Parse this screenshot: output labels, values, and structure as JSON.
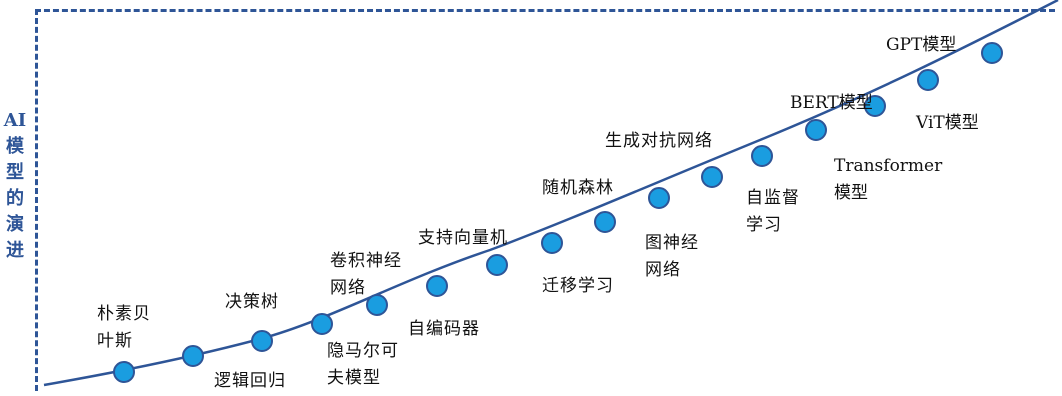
{
  "side_label": [
    "AI",
    "模",
    "型",
    "的",
    "演",
    "进"
  ],
  "colors": {
    "frame": "#2e5597",
    "curve": "#2e5597",
    "node_fill": "#1a9de0",
    "node_stroke": "#2e5597",
    "label_side": "#2e5597",
    "text": "#111111"
  },
  "milestones": [
    {
      "id": "naive-bayes",
      "label": "朴素贝\n叶斯"
    },
    {
      "id": "logistic-regression",
      "label": "逻辑回归"
    },
    {
      "id": "decision-tree",
      "label": "决策树"
    },
    {
      "id": "hmm",
      "label": "隐马尔可\n夫模型"
    },
    {
      "id": "cnn",
      "label": "卷积神经\n网络"
    },
    {
      "id": "autoencoder",
      "label": "自编码器"
    },
    {
      "id": "svm",
      "label": "支持向量机"
    },
    {
      "id": "transfer-learning",
      "label": "迁移学习"
    },
    {
      "id": "random-forest",
      "label": "随机森林"
    },
    {
      "id": "gnn",
      "label": "图神经\n网络"
    },
    {
      "id": "gan",
      "label": "生成对抗网络"
    },
    {
      "id": "self-supervised",
      "label": "自监督\n学习"
    },
    {
      "id": "transformer",
      "label": "Transformer\n模型"
    },
    {
      "id": "bert",
      "label": "BERT模型"
    },
    {
      "id": "vit",
      "label": "ViT模型"
    },
    {
      "id": "gpt",
      "label": "GPT模型"
    }
  ]
}
